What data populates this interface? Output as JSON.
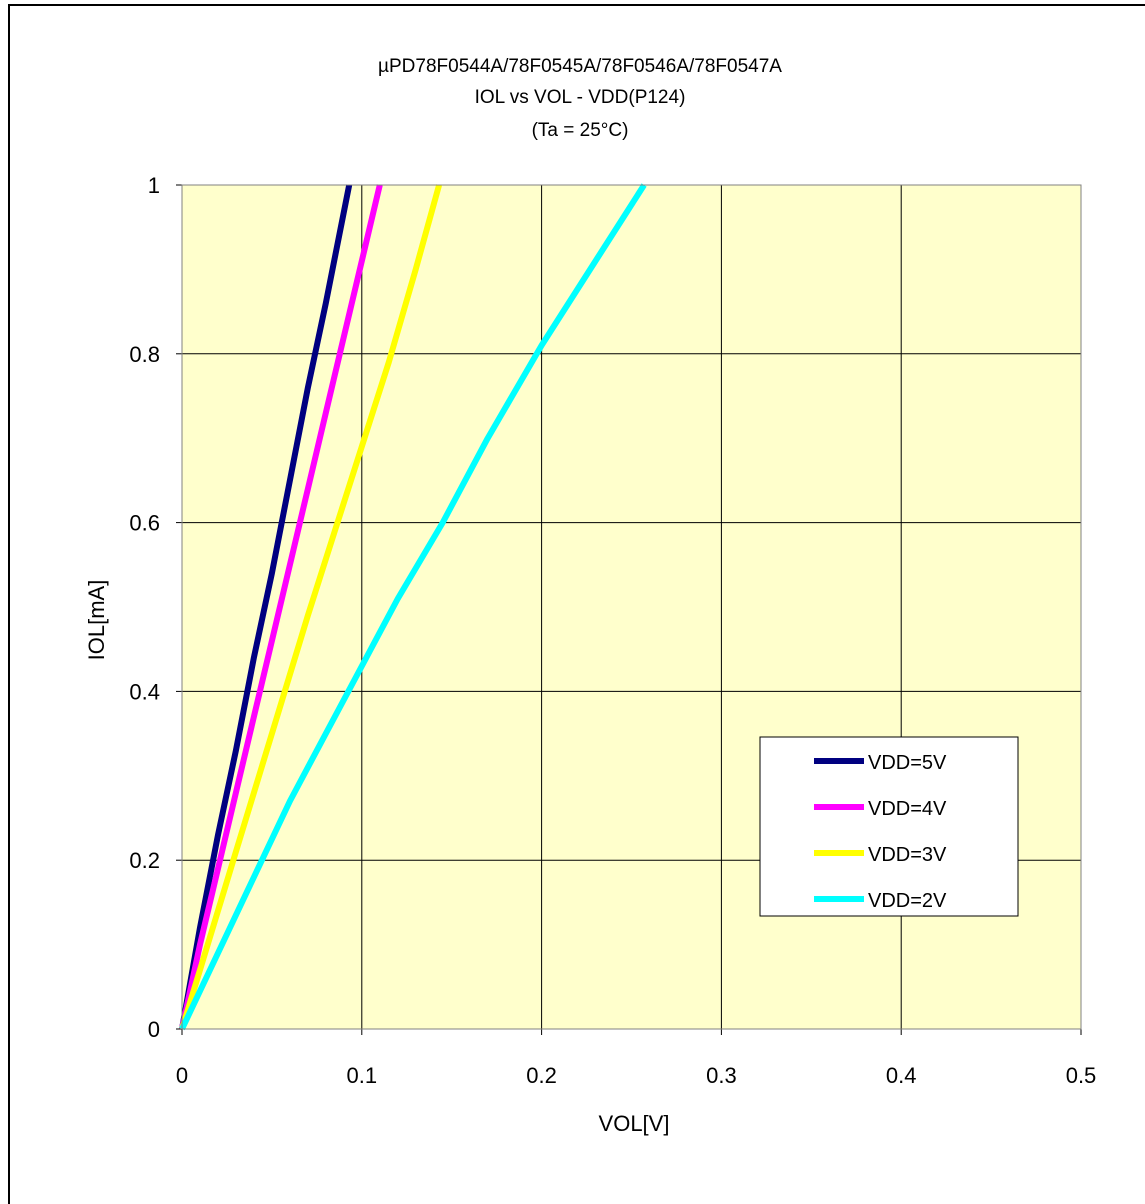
{
  "chart_data": {
    "type": "line",
    "title_lines": [
      "µPD78F0544A/78F0545A/78F0546A/78F0547A",
      "IOL vs VOL  - VDD(P124)",
      "(Ta =  25°C)"
    ],
    "xlabel": "VOL[V]",
    "ylabel": "IOL[mA]",
    "xlim": [
      0,
      0.5
    ],
    "ylim": [
      0,
      1
    ],
    "xticks": [
      "0",
      "0.1",
      "0.2",
      "0.3",
      "0.4",
      "0.5"
    ],
    "yticks": [
      "0",
      "0.2",
      "0.4",
      "0.6",
      "0.8",
      "1"
    ],
    "grid": true,
    "legend_position": "right",
    "plot_background": "#ffffcc",
    "series": [
      {
        "name": "VDD=5V",
        "color": "#000080",
        "x": [
          0,
          0.005,
          0.01,
          0.02,
          0.03,
          0.04,
          0.05,
          0.06,
          0.07,
          0.08,
          0.093
        ],
        "y": [
          0,
          0.06,
          0.12,
          0.23,
          0.33,
          0.44,
          0.54,
          0.65,
          0.76,
          0.86,
          1.0
        ]
      },
      {
        "name": "VDD=4V",
        "color": "#ff00ff",
        "x": [
          0,
          0.005,
          0.01,
          0.02,
          0.03,
          0.04,
          0.05,
          0.06,
          0.07,
          0.08,
          0.09,
          0.1,
          0.11
        ],
        "y": [
          0,
          0.05,
          0.1,
          0.19,
          0.28,
          0.37,
          0.46,
          0.55,
          0.64,
          0.73,
          0.82,
          0.91,
          1.0
        ]
      },
      {
        "name": "VDD=3V",
        "color": "#ffff00",
        "x": [
          0,
          0.01,
          0.02,
          0.03,
          0.04,
          0.05,
          0.06,
          0.07,
          0.085,
          0.1,
          0.115,
          0.13,
          0.143
        ],
        "y": [
          0,
          0.07,
          0.14,
          0.21,
          0.28,
          0.35,
          0.42,
          0.49,
          0.59,
          0.69,
          0.79,
          0.9,
          1.0
        ]
      },
      {
        "name": "VDD=2V",
        "color": "#00ffff",
        "x": [
          0,
          0.02,
          0.04,
          0.06,
          0.08,
          0.1,
          0.12,
          0.145,
          0.17,
          0.2,
          0.23,
          0.257
        ],
        "y": [
          0,
          0.09,
          0.18,
          0.27,
          0.35,
          0.43,
          0.51,
          0.6,
          0.7,
          0.81,
          0.91,
          1.0
        ]
      }
    ]
  }
}
